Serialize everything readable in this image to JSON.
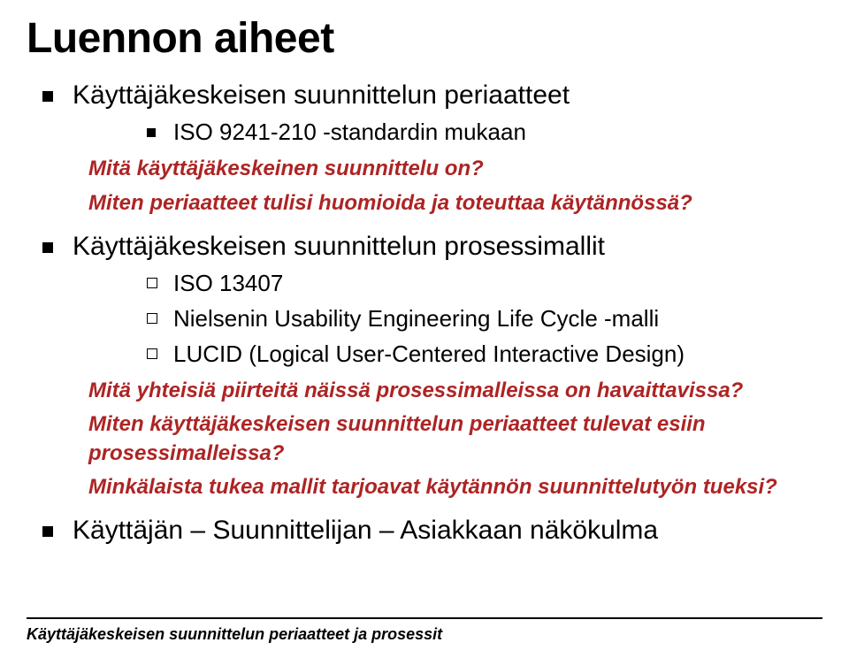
{
  "colors": {
    "text": "#000000",
    "accent": "#ad2424",
    "background": "#ffffff",
    "rule": "#000000"
  },
  "typography": {
    "title_fontsize": 48,
    "title_weight": 900,
    "bullet1_fontsize": 30,
    "bullet2_fontsize": 26,
    "commentary_fontsize": 24,
    "footer_fontsize": 18
  },
  "title": "Luennon aiheet",
  "bullets": [
    {
      "text": "Käyttäjäkeskeisen suunnittelun periaatteet",
      "sub": [
        {
          "marker": "sq",
          "text": "ISO 9241-210 -standardin mukaan"
        }
      ],
      "comments": [
        "Mitä käyttäjäkeskeinen suunnittelu on?",
        "Miten periaatteet tulisi huomioida ja toteuttaa käytännössä?"
      ]
    },
    {
      "text": "Käyttäjäkeskeisen suunnittelun prosessimallit",
      "sub": [
        {
          "marker": "hollow",
          "text": "ISO 13407"
        },
        {
          "marker": "hollow",
          "text": "Nielsenin Usability Engineering Life Cycle -malli"
        },
        {
          "marker": "hollow",
          "text": "LUCID (Logical User-Centered Interactive Design)"
        }
      ],
      "comments": [
        "Mitä yhteisiä piirteitä näissä prosessimalleissa on havaittavissa?",
        "Miten käyttäjäkeskeisen suunnittelun periaatteet tulevat esiin prosessimalleissa?",
        "Minkälaista tukea mallit tarjoavat käytännön suunnittelutyön tueksi?"
      ]
    },
    {
      "text": "Käyttäjän – Suunnittelijan – Asiakkaan näkökulma",
      "sub": [],
      "comments": []
    }
  ],
  "footer": "Käyttäjäkeskeisen suunnittelun periaatteet ja prosessit"
}
